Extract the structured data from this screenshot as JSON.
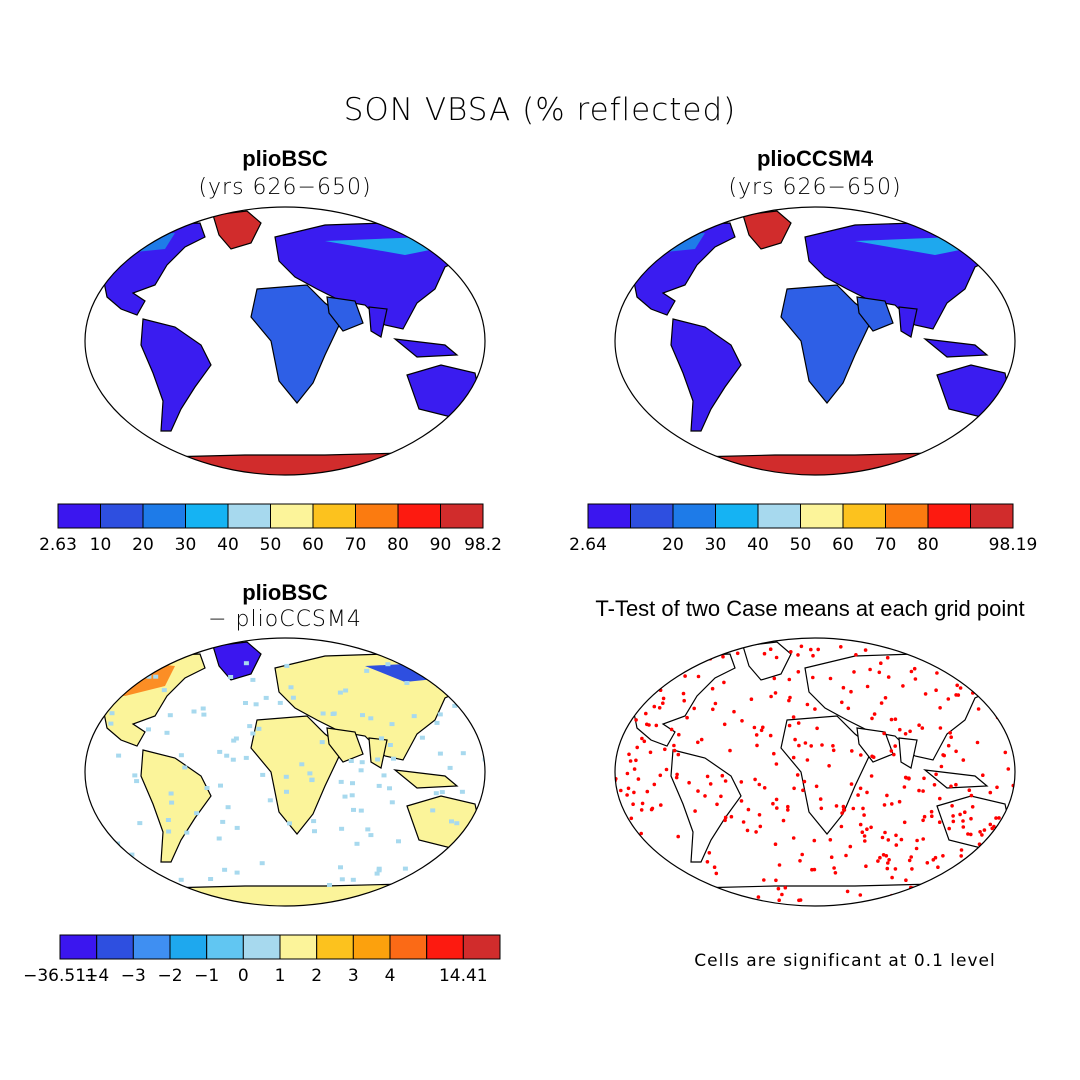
{
  "figure": {
    "title": "SON VBSA (% reflected)",
    "note": "Cells are significant at 0.1 level"
  },
  "panels": [
    {
      "title": "plioBSC",
      "subtitle": "(yrs 626−650)",
      "fill": "#3a1cf0",
      "colorbar": {
        "colors": [
          "#3b16ef",
          "#2e4fe0",
          "#1e7be8",
          "#15b3f3",
          "#a7d9ee",
          "#fcf49a",
          "#fcc21e",
          "#fb7b10",
          "#fd1a10",
          "#d12c2c"
        ],
        "labels": [
          "2.63",
          "10",
          "20",
          "30",
          "40",
          "50",
          "60",
          "70",
          "80",
          "90",
          "98.2"
        ]
      }
    },
    {
      "title": "plioCCSM4",
      "subtitle": "(yrs 626−650)",
      "fill": "#3a1cf0",
      "colorbar": {
        "colors": [
          "#3b16ef",
          "#2e4fe0",
          "#1e7be8",
          "#15b3f3",
          "#a7d9ee",
          "#fcf49a",
          "#fcc21e",
          "#fb7b10",
          "#fd1a10",
          "#d12c2c"
        ],
        "labels": [
          "2.64",
          "",
          "20",
          "30",
          "40",
          "50",
          "60",
          "70",
          "80",
          "",
          "98.19"
        ]
      }
    },
    {
      "title": "plioBSC",
      "subtitle": "− plioCCSM4",
      "fill": "#fbf49a",
      "colorbar": {
        "colors": [
          "#3b16ef",
          "#2e4fe0",
          "#3f8ff2",
          "#1ea8ee",
          "#61c6f2",
          "#a7d9ee",
          "#fcf49a",
          "#fcc21e",
          "#fca10d",
          "#fb6a16",
          "#fd1a10",
          "#d12c2c"
        ],
        "labels": [
          "−36.511",
          "−4",
          "−3",
          "−2",
          "−1",
          "0",
          "1",
          "2",
          "3",
          "4",
          "",
          "14.41"
        ]
      }
    },
    {
      "title": "T-Test of two Case means at each grid point",
      "fill": "#ffffff"
    }
  ]
}
